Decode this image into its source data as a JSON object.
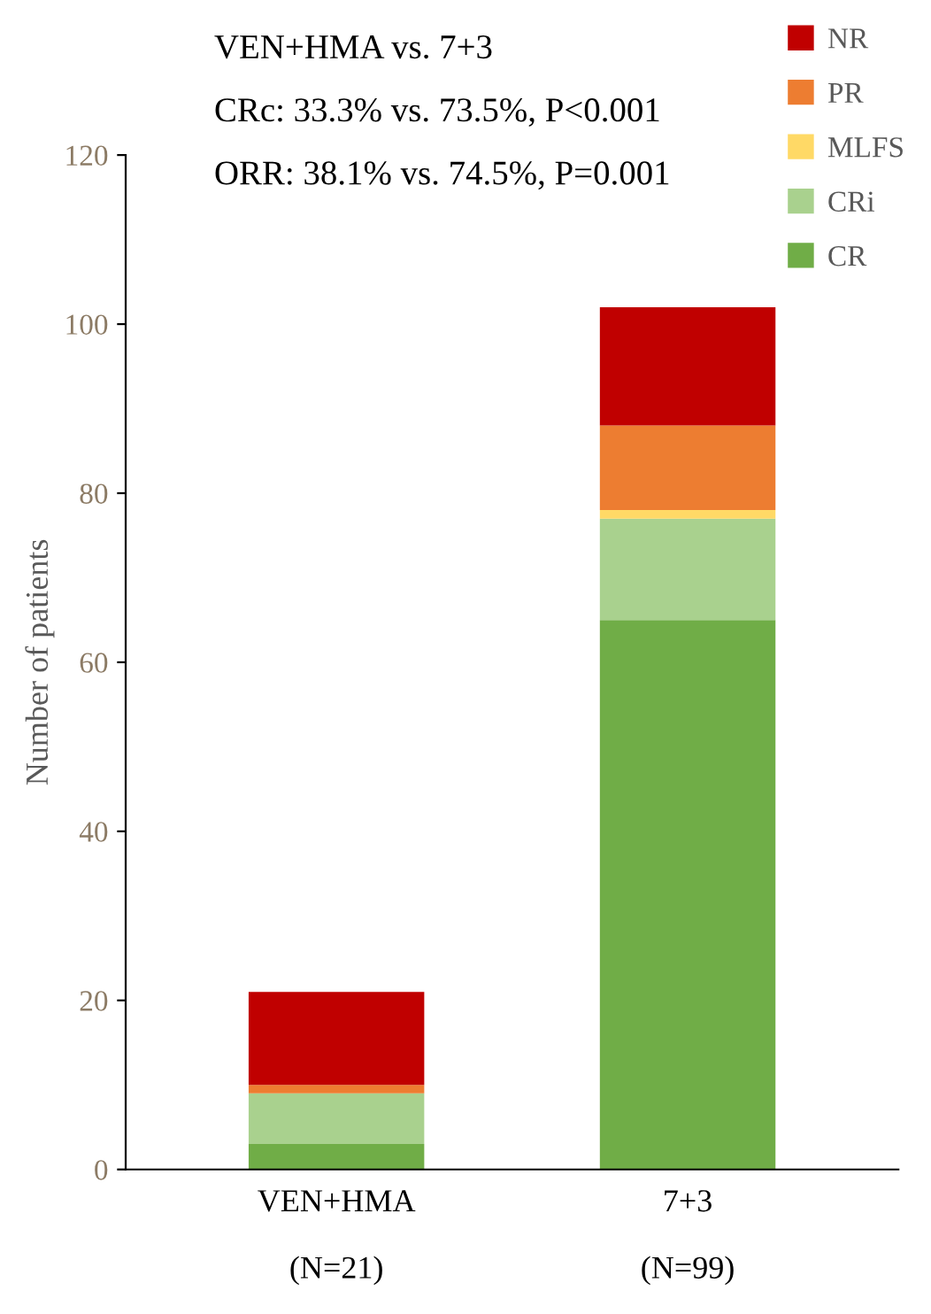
{
  "chart_data": {
    "type": "bar",
    "stacked": true,
    "ylabel": "Number of patients",
    "categories": [
      "VEN+HMA\n\n(N=21)",
      "7+3\n\n(N=99)"
    ],
    "series": [
      {
        "name": "CR",
        "color": "#70ad47",
        "values": [
          3,
          65
        ]
      },
      {
        "name": "CRi",
        "color": "#a9d18e",
        "values": [
          6,
          12
        ]
      },
      {
        "name": "MLFS",
        "color": "#ffd966",
        "values": [
          0,
          1
        ]
      },
      {
        "name": "PR",
        "color": "#ed7d31",
        "values": [
          1,
          10
        ]
      },
      {
        "name": "NR",
        "color": "#c00000",
        "values": [
          11,
          14
        ]
      }
    ],
    "ylim": [
      0,
      120
    ],
    "yticks": [
      0,
      20,
      40,
      60,
      80,
      100,
      120
    ],
    "grid": false,
    "legend": "top right",
    "annotations": [
      "VEN+HMA vs. 7+3",
      "CRc: 33.3% vs. 73.5%, P<0.001",
      "ORR: 38.1% vs. 74.5%, P=0.001"
    ]
  }
}
